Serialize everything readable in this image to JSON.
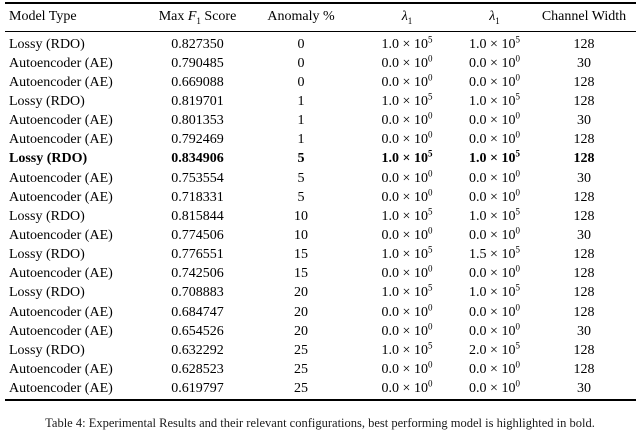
{
  "page": {
    "caption": "Table 4: Experimental Results and their relevant configurations, best performing model is highlighted in bold."
  },
  "table": {
    "headers": [
      {
        "text": "Model Type"
      },
      {
        "pre": "Max ",
        "italic": "F",
        "sub": "1",
        "post": " Score"
      },
      {
        "text": "Anomaly %"
      },
      {
        "italic": "λ",
        "sub": "1"
      },
      {
        "italic": "λ",
        "sub": "1"
      },
      {
        "text": "Channel Width"
      }
    ],
    "highlight_row_index": 6,
    "rows": [
      [
        "Lossy (RDO)",
        "0.827350",
        "0",
        "1.0 × 10^5",
        "1.0 × 10^5",
        "128"
      ],
      [
        "Autoencoder (AE)",
        "0.790485",
        "0",
        "0.0 × 10^0",
        "0.0 × 10^0",
        "30"
      ],
      [
        "Autoencoder (AE)",
        "0.669088",
        "0",
        "0.0 × 10^0",
        "0.0 × 10^0",
        "128"
      ],
      [
        "Lossy (RDO)",
        "0.819701",
        "1",
        "1.0 × 10^5",
        "1.0 × 10^5",
        "128"
      ],
      [
        "Autoencoder (AE)",
        "0.801353",
        "1",
        "0.0 × 10^0",
        "0.0 × 10^0",
        "30"
      ],
      [
        "Autoencoder (AE)",
        "0.792469",
        "1",
        "0.0 × 10^0",
        "0.0 × 10^0",
        "128"
      ],
      [
        "Lossy (RDO)",
        "0.834906",
        "5",
        "1.0 × 10^5",
        "1.0 × 10^5",
        "128"
      ],
      [
        "Autoencoder (AE)",
        "0.753554",
        "5",
        "0.0 × 10^0",
        "0.0 × 10^0",
        "30"
      ],
      [
        "Autoencoder (AE)",
        "0.718331",
        "5",
        "0.0 × 10^0",
        "0.0 × 10^0",
        "128"
      ],
      [
        "Lossy (RDO)",
        "0.815844",
        "10",
        "1.0 × 10^5",
        "1.0 × 10^5",
        "128"
      ],
      [
        "Autoencoder (AE)",
        "0.774506",
        "10",
        "0.0 × 10^0",
        "0.0 × 10^0",
        "30"
      ],
      [
        "Lossy (RDO)",
        "0.776551",
        "15",
        "1.0 × 10^5",
        "1.5 × 10^5",
        "128"
      ],
      [
        "Autoencoder (AE)",
        "0.742506",
        "15",
        "0.0 × 10^0",
        "0.0 × 10^0",
        "128"
      ],
      [
        "Lossy (RDO)",
        "0.708883",
        "20",
        "1.0 × 10^5",
        "1.0 × 10^5",
        "128"
      ],
      [
        "Autoencoder (AE)",
        "0.684747",
        "20",
        "0.0 × 10^0",
        "0.0 × 10^0",
        "128"
      ],
      [
        "Autoencoder (AE)",
        "0.654526",
        "20",
        "0.0 × 10^0",
        "0.0 × 10^0",
        "30"
      ],
      [
        "Lossy (RDO)",
        "0.632292",
        "25",
        "1.0 × 10^5",
        "2.0 × 10^5",
        "128"
      ],
      [
        "Autoencoder (AE)",
        "0.628523",
        "25",
        "0.0 × 10^0",
        "0.0 × 10^0",
        "128"
      ],
      [
        "Autoencoder (AE)",
        "0.619797",
        "25",
        "0.0 × 10^0",
        "0.0 × 10^0",
        "30"
      ]
    ]
  }
}
